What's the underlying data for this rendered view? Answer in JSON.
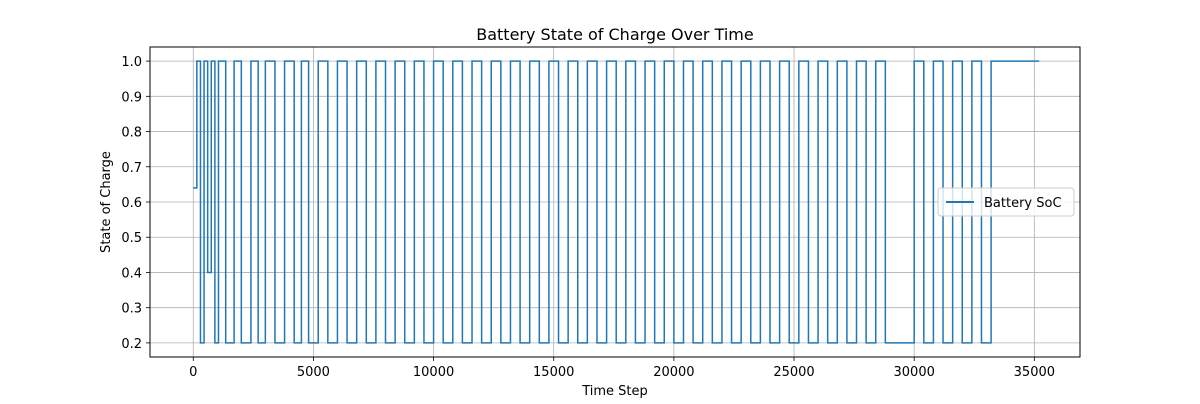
{
  "chart_data": {
    "type": "line",
    "title": "Battery State of Charge Over Time",
    "xlabel": "Time Step",
    "ylabel": "State of Charge",
    "xlim": [
      -1800,
      36900
    ],
    "ylim": [
      0.16,
      1.04
    ],
    "xticks": [
      0,
      5000,
      10000,
      15000,
      20000,
      25000,
      30000,
      35000
    ],
    "xtick_labels": [
      "0",
      "5000",
      "10000",
      "15000",
      "20000",
      "25000",
      "30000",
      "35000"
    ],
    "yticks": [
      0.2,
      0.3,
      0.4,
      0.5,
      0.6,
      0.7,
      0.8,
      0.9,
      1.0
    ],
    "ytick_labels": [
      "0.2",
      "0.3",
      "0.4",
      "0.5",
      "0.6",
      "0.7",
      "0.8",
      "0.9",
      "1.0"
    ],
    "grid": true,
    "legend_position": "center-right",
    "series": [
      {
        "name": "Battery SoC",
        "color": "#1f77b4",
        "min": 0.2,
        "max": 1.0,
        "x_start": 0,
        "x_end": 35200,
        "x": [
          0,
          150,
          300,
          450,
          600,
          750,
          900,
          1050,
          1350,
          1700,
          2000,
          2400,
          2700,
          3000,
          3400,
          3800,
          4200,
          4500,
          4800,
          5200,
          5600,
          6000,
          6400,
          6800,
          7200,
          7600,
          8000,
          8400,
          8800,
          9200,
          9600,
          10000,
          10400,
          10800,
          11200,
          11600,
          12000,
          12400,
          12800,
          13200,
          13600,
          14000,
          14400,
          14800,
          15200,
          15600,
          16000,
          16400,
          16800,
          17200,
          17600,
          18000,
          18400,
          18800,
          19200,
          19600,
          20000,
          20400,
          20800,
          21200,
          21600,
          22000,
          22400,
          22800,
          23200,
          23600,
          24000,
          24400,
          24800,
          25200,
          25600,
          26000,
          26400,
          26800,
          27200,
          27600,
          28000,
          28400,
          28800,
          29200,
          29600,
          30000,
          30400,
          30800,
          31200,
          31600,
          32000,
          32400,
          32800,
          33200,
          33600,
          34000,
          34400,
          34800,
          35200
        ],
        "values": [
          0.64,
          1.0,
          0.2,
          1.0,
          0.4,
          1.0,
          0.2,
          1.0,
          0.2,
          1.0,
          0.2,
          1.0,
          0.2,
          1.0,
          0.2,
          1.0,
          0.2,
          1.0,
          0.2,
          1.0,
          0.2,
          1.0,
          0.2,
          1.0,
          0.2,
          1.0,
          0.2,
          1.0,
          0.2,
          1.0,
          0.2,
          1.0,
          0.2,
          1.0,
          0.2,
          1.0,
          0.2,
          1.0,
          0.2,
          1.0,
          0.2,
          1.0,
          0.2,
          1.0,
          0.2,
          1.0,
          0.2,
          1.0,
          0.2,
          1.0,
          0.2,
          1.0,
          0.2,
          1.0,
          0.2,
          1.0,
          0.2,
          1.0,
          0.2,
          1.0,
          0.2,
          1.0,
          0.2,
          1.0,
          0.2,
          1.0,
          0.2,
          1.0,
          0.2,
          1.0,
          0.2,
          1.0,
          0.2,
          1.0,
          0.2,
          1.0,
          0.2,
          1.0,
          0.2,
          0.2,
          0.2,
          1.0,
          0.2,
          1.0,
          0.2,
          1.0,
          0.2,
          1.0,
          0.2,
          1.0,
          1.0,
          1.0,
          1.0,
          1.0,
          1.0
        ]
      }
    ]
  }
}
